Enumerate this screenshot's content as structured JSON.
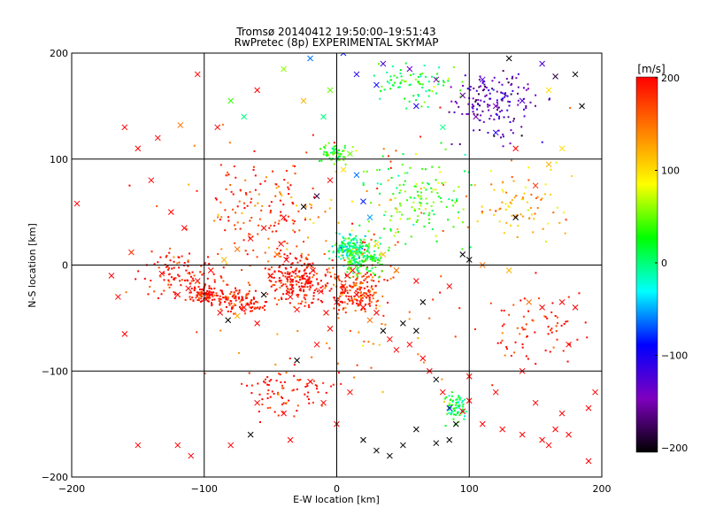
{
  "chart_data": {
    "type": "scatter",
    "title": "Tromsø 20140412 19:50:00–19:51:43",
    "subtitle": "RwPretec (8p) EXPERIMENTAL SKYMAP",
    "xlabel": "E-W location [km]",
    "ylabel": "N-S location [km]",
    "xlim": [
      -200,
      200
    ],
    "ylim": [
      -200,
      200
    ],
    "x_ticks": [
      -200,
      -100,
      0,
      100,
      200
    ],
    "y_ticks": [
      -200,
      -100,
      0,
      100,
      200
    ],
    "x_tick_labels": [
      "−200",
      "−100",
      "0",
      "100",
      "200"
    ],
    "y_tick_labels": [
      "200",
      "100",
      "0",
      "−100",
      "−200"
    ],
    "grid": true,
    "colorbar": {
      "label": "[m/s]",
      "range": [
        -200,
        200
      ],
      "ticks": [
        200,
        100,
        0,
        -100,
        -200
      ],
      "tick_labels": [
        "200",
        "100",
        "0",
        "−100",
        "−200"
      ],
      "colormap_stops": [
        "#ff0000",
        "#ff7f00",
        "#ffff00",
        "#00ff00",
        "#00ffff",
        "#0000ff",
        "#7f00bf",
        "#000000"
      ]
    },
    "series": [
      {
        "marker": "x",
        "points": [
          [
            -135,
            120,
            200
          ],
          [
            -118,
            132,
            150
          ],
          [
            -155,
            12,
            180
          ],
          [
            -196,
            58,
            200
          ],
          [
            -132,
            -8,
            200
          ],
          [
            -120,
            -28,
            200
          ],
          [
            -112,
            -22,
            200
          ],
          [
            -95,
            -28,
            200
          ],
          [
            -88,
            -45,
            200
          ],
          [
            -82,
            -52,
            -200
          ],
          [
            -75,
            -48,
            120
          ],
          [
            -70,
            -40,
            200
          ],
          [
            -60,
            -55,
            200
          ],
          [
            -55,
            -28,
            -200
          ],
          [
            -50,
            -10,
            200
          ],
          [
            -45,
            10,
            150
          ],
          [
            -42,
            20,
            200
          ],
          [
            -38,
            5,
            200
          ],
          [
            -35,
            -30,
            200
          ],
          [
            -30,
            -42,
            200
          ],
          [
            -22,
            -15,
            200
          ],
          [
            -18,
            -5,
            200
          ],
          [
            -12,
            -25,
            200
          ],
          [
            -8,
            -45,
            200
          ],
          [
            -5,
            -60,
            200
          ],
          [
            0,
            -35,
            200
          ],
          [
            5,
            -20,
            200
          ],
          [
            8,
            -10,
            200
          ],
          [
            12,
            -5,
            200
          ],
          [
            15,
            -28,
            200
          ],
          [
            20,
            -40,
            200
          ],
          [
            25,
            -52,
            150
          ],
          [
            30,
            -45,
            200
          ],
          [
            35,
            -62,
            -200
          ],
          [
            40,
            -70,
            200
          ],
          [
            45,
            -80,
            200
          ],
          [
            50,
            -55,
            -200
          ],
          [
            55,
            -75,
            200
          ],
          [
            60,
            -62,
            -200
          ],
          [
            65,
            -88,
            200
          ],
          [
            70,
            -100,
            200
          ],
          [
            75,
            -108,
            -200
          ],
          [
            80,
            -120,
            200
          ],
          [
            85,
            -135,
            -100
          ],
          [
            90,
            -150,
            -200
          ],
          [
            95,
            -138,
            200
          ],
          [
            100,
            -128,
            200
          ],
          [
            -10,
            140,
            0
          ],
          [
            -25,
            155,
            120
          ],
          [
            -5,
            165,
            50
          ],
          [
            15,
            180,
            -100
          ],
          [
            35,
            190,
            -120
          ],
          [
            55,
            185,
            -130
          ],
          [
            75,
            175,
            -150
          ],
          [
            95,
            160,
            -160
          ],
          [
            105,
            140,
            -150
          ],
          [
            120,
            150,
            -140
          ],
          [
            140,
            155,
            -120
          ],
          [
            160,
            165,
            100
          ],
          [
            180,
            180,
            -200
          ],
          [
            185,
            150,
            -200
          ],
          [
            -105,
            180,
            200
          ],
          [
            -165,
            -30,
            200
          ],
          [
            -160,
            -65,
            200
          ],
          [
            -170,
            -10,
            200
          ],
          [
            -150,
            -170,
            200
          ],
          [
            -120,
            -170,
            200
          ],
          [
            -110,
            -180,
            200
          ],
          [
            -80,
            -170,
            200
          ],
          [
            -65,
            -160,
            -200
          ],
          [
            -60,
            -130,
            200
          ],
          [
            -40,
            -140,
            200
          ],
          [
            -35,
            -165,
            200
          ],
          [
            20,
            -165,
            -200
          ],
          [
            30,
            -175,
            -200
          ],
          [
            40,
            -180,
            -200
          ],
          [
            50,
            -170,
            -200
          ],
          [
            60,
            -155,
            -200
          ],
          [
            75,
            -168,
            -200
          ],
          [
            85,
            -165,
            -200
          ],
          [
            110,
            -150,
            200
          ],
          [
            125,
            -155,
            200
          ],
          [
            140,
            -160,
            200
          ],
          [
            160,
            -170,
            200
          ],
          [
            175,
            -160,
            200
          ],
          [
            190,
            -185,
            200
          ],
          [
            190,
            -135,
            200
          ],
          [
            195,
            -120,
            200
          ],
          [
            180,
            -40,
            200
          ],
          [
            175,
            -75,
            200
          ],
          [
            170,
            -35,
            200
          ],
          [
            155,
            -40,
            200
          ],
          [
            145,
            -35,
            150
          ],
          [
            130,
            -5,
            120
          ],
          [
            110,
            0,
            150
          ],
          [
            100,
            5,
            -200
          ],
          [
            95,
            10,
            -200
          ],
          [
            85,
            -20,
            200
          ],
          [
            65,
            -35,
            -200
          ],
          [
            60,
            -15,
            200
          ],
          [
            45,
            -5,
            150
          ],
          [
            35,
            10,
            120
          ],
          [
            30,
            20,
            100
          ],
          [
            25,
            45,
            -50
          ],
          [
            20,
            60,
            -80
          ],
          [
            15,
            85,
            -60
          ],
          [
            10,
            105,
            50
          ],
          [
            5,
            90,
            100
          ],
          [
            -5,
            80,
            200
          ],
          [
            -15,
            65,
            -180
          ],
          [
            -25,
            55,
            -200
          ],
          [
            -40,
            45,
            200
          ],
          [
            -55,
            35,
            200
          ],
          [
            -65,
            25,
            200
          ],
          [
            -75,
            15,
            150
          ],
          [
            -85,
            5,
            120
          ],
          [
            -95,
            -5,
            200
          ],
          [
            -105,
            -15,
            200
          ],
          [
            -115,
            35,
            200
          ],
          [
            -125,
            50,
            200
          ],
          [
            -140,
            80,
            200
          ],
          [
            -150,
            110,
            200
          ],
          [
            -160,
            130,
            200
          ],
          [
            140,
            -100,
            200
          ],
          [
            150,
            -130,
            200
          ],
          [
            170,
            -140,
            200
          ],
          [
            165,
            -155,
            200
          ],
          [
            155,
            -165,
            200
          ],
          [
            120,
            -120,
            200
          ],
          [
            100,
            -105,
            200
          ],
          [
            -20,
            -110,
            200
          ],
          [
            -10,
            -130,
            200
          ],
          [
            0,
            -150,
            200
          ],
          [
            10,
            -120,
            200
          ],
          [
            -30,
            -90,
            -200
          ],
          [
            -15,
            -75,
            200
          ],
          [
            135,
            45,
            -200
          ],
          [
            150,
            75,
            180
          ],
          [
            160,
            95,
            120
          ],
          [
            170,
            110,
            100
          ],
          [
            135,
            110,
            200
          ],
          [
            120,
            125,
            -100
          ],
          [
            110,
            175,
            -120
          ],
          [
            130,
            195,
            -200
          ],
          [
            155,
            190,
            -120
          ],
          [
            165,
            178,
            -180
          ],
          [
            -70,
            140,
            0
          ],
          [
            -80,
            155,
            40
          ],
          [
            -90,
            130,
            200
          ],
          [
            -60,
            165,
            200
          ],
          [
            -40,
            185,
            60
          ],
          [
            -20,
            195,
            -60
          ],
          [
            5,
            200,
            -80
          ],
          [
            30,
            170,
            -90
          ],
          [
            60,
            150,
            -100
          ],
          [
            80,
            130,
            0
          ],
          [
            -2,
            108,
            0
          ]
        ]
      },
      {
        "marker": "dot",
        "clusters": [
          {
            "center": [
              -100,
              -28
            ],
            "radius": [
              15,
              12
            ],
            "value": 200,
            "count": 90
          },
          {
            "center": [
              -75,
              -35
            ],
            "radius": [
              25,
              20
            ],
            "value": 190,
            "count": 120
          },
          {
            "center": [
              -30,
              -15
            ],
            "radius": [
              35,
              30
            ],
            "value": 200,
            "count": 220
          },
          {
            "center": [
              15,
              -25
            ],
            "radius": [
              30,
              30
            ],
            "value": 180,
            "count": 180
          },
          {
            "center": [
              10,
              15
            ],
            "radius": [
              18,
              18
            ],
            "value": 0,
            "count": 170
          },
          {
            "center": [
              20,
              5
            ],
            "radius": [
              25,
              25
            ],
            "value": 30,
            "count": 120
          },
          {
            "center": [
              0,
              105
            ],
            "radius": [
              18,
              12
            ],
            "value": 40,
            "count": 60
          },
          {
            "center": [
              90,
              -135
            ],
            "radius": [
              12,
              20
            ],
            "value": 10,
            "count": 70
          },
          {
            "center": [
              120,
              150
            ],
            "radius": [
              45,
              45
            ],
            "value": -140,
            "count": 150
          },
          {
            "center": [
              60,
              170
            ],
            "radius": [
              45,
              30
            ],
            "value": 20,
            "count": 80
          },
          {
            "center": [
              60,
              60
            ],
            "radius": [
              60,
              60
            ],
            "value": 40,
            "count": 140
          },
          {
            "center": [
              -60,
              60
            ],
            "radius": [
              60,
              60
            ],
            "value": 180,
            "count": 130
          },
          {
            "center": [
              -120,
              -10
            ],
            "radius": [
              45,
              35
            ],
            "value": 200,
            "count": 100
          },
          {
            "center": [
              -40,
              -120
            ],
            "radius": [
              45,
              40
            ],
            "value": 200,
            "count": 80
          },
          {
            "center": [
              150,
              -60
            ],
            "radius": [
              50,
              50
            ],
            "value": 200,
            "count": 70
          },
          {
            "center": [
              140,
              60
            ],
            "radius": [
              55,
              45
            ],
            "value": 120,
            "count": 80
          },
          {
            "center": [
              0,
              0
            ],
            "radius": [
              190,
              190
            ],
            "value": 150,
            "count": 160
          }
        ]
      }
    ]
  }
}
